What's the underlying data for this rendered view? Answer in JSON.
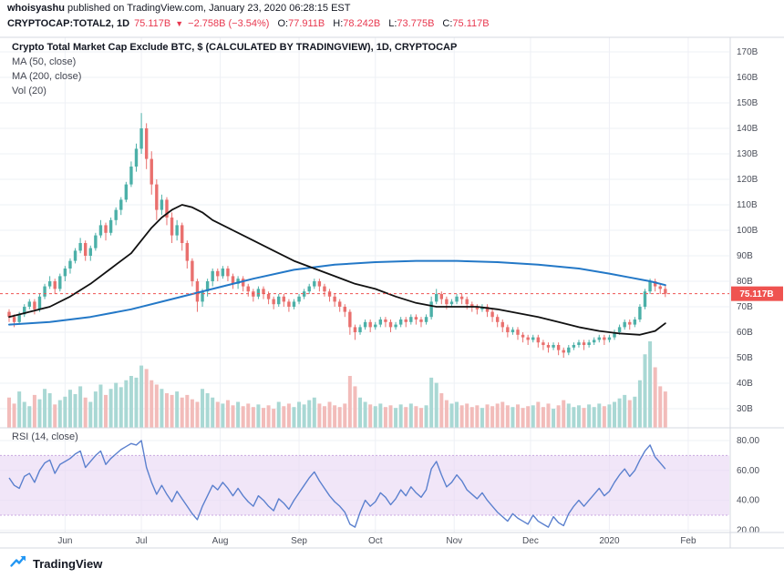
{
  "header": {
    "author": "whoisyashu",
    "published": " published on TradingView.com, January 23, 2020 06:28:15 EST",
    "symbol": "CRYPTOCAP:TOTAL2, 1D",
    "last_price": "75.117B",
    "down_arrow": "▼",
    "change": "−2.758B (−3.54%)",
    "ohlc": [
      {
        "label": "O:",
        "value": "77.911B"
      },
      {
        "label": "H:",
        "value": "78.242B"
      },
      {
        "label": "L:",
        "value": "73.775B"
      },
      {
        "label": "C:",
        "value": "75.117B"
      }
    ]
  },
  "legend": {
    "title": "Crypto Total Market Cap Exclude BTC, $ (CALCULATED BY TRADINGVIEW), 1D, CRYPTOCAP",
    "ma50": "MA (50, close)",
    "ma200": "MA (200, close)",
    "vol": "Vol (20)",
    "rsi": "RSI (14, close)"
  },
  "footer": {
    "brand": "TradingView"
  },
  "chart_data": {
    "type": "candlestick",
    "title": "Crypto Total Market Cap Exclude BTC, $ (CALCULATED BY TRADINGVIEW), 1D, CRYPTOCAP",
    "symbol": "CRYPTOCAP:TOTAL2",
    "interval": "1D",
    "ohlc_last": {
      "open": 77.911,
      "high": 78.242,
      "low": 73.775,
      "close": 75.117,
      "change": -2.758,
      "change_pct": -3.54
    },
    "y_axis": {
      "min": 30,
      "max": 170,
      "step": 10,
      "unit": "B"
    },
    "x_axis_labels": [
      {
        "label": "Jun",
        "step": 11
      },
      {
        "label": "Jul",
        "step": 26
      },
      {
        "label": "Aug",
        "step": 41.5
      },
      {
        "label": "Sep",
        "step": 57
      },
      {
        "label": "Oct",
        "step": 72
      },
      {
        "label": "Nov",
        "step": 87.5
      },
      {
        "label": "Dec",
        "step": 102.5
      },
      {
        "label": "2020",
        "step": 118
      },
      {
        "label": "Feb",
        "step": 133.5
      }
    ],
    "price_line": {
      "value": 75.117,
      "label": "75.117B"
    },
    "candles": [
      [
        68,
        69,
        64,
        66
      ],
      [
        66,
        67,
        62,
        64
      ],
      [
        64,
        68,
        63,
        67
      ],
      [
        67,
        71,
        66,
        70
      ],
      [
        70,
        73,
        69,
        72
      ],
      [
        72,
        73,
        67,
        69
      ],
      [
        69,
        75,
        68,
        74
      ],
      [
        74,
        79,
        73,
        78
      ],
      [
        78,
        82,
        77,
        80
      ],
      [
        80,
        81,
        75,
        77
      ],
      [
        77,
        83,
        76,
        82
      ],
      [
        82,
        86,
        80,
        85
      ],
      [
        85,
        89,
        83,
        88
      ],
      [
        88,
        93,
        87,
        92
      ],
      [
        92,
        97,
        91,
        95
      ],
      [
        95,
        96,
        88,
        90
      ],
      [
        90,
        94,
        88,
        93
      ],
      [
        93,
        99,
        92,
        98
      ],
      [
        98,
        104,
        97,
        102
      ],
      [
        102,
        103,
        96,
        99
      ],
      [
        99,
        105,
        98,
        104
      ],
      [
        104,
        109,
        102,
        108
      ],
      [
        108,
        113,
        106,
        112
      ],
      [
        112,
        119,
        111,
        118
      ],
      [
        118,
        127,
        117,
        125
      ],
      [
        125,
        134,
        123,
        132
      ],
      [
        132,
        146,
        130,
        140
      ],
      [
        140,
        142,
        124,
        128
      ],
      [
        128,
        131,
        114,
        118
      ],
      [
        118,
        120,
        104,
        108
      ],
      [
        108,
        114,
        106,
        112
      ],
      [
        112,
        113,
        102,
        105
      ],
      [
        105,
        107,
        95,
        98
      ],
      [
        98,
        104,
        96,
        102
      ],
      [
        102,
        103,
        92,
        95
      ],
      [
        95,
        96,
        85,
        88
      ],
      [
        88,
        89,
        78,
        80
      ],
      [
        80,
        81,
        68,
        72
      ],
      [
        72,
        77,
        70,
        76
      ],
      [
        76,
        81,
        74,
        80
      ],
      [
        80,
        85,
        78,
        84
      ],
      [
        84,
        85,
        80,
        82
      ],
      [
        82,
        86,
        81,
        85
      ],
      [
        85,
        86,
        80,
        82
      ],
      [
        82,
        83,
        77,
        79
      ],
      [
        79,
        82,
        77,
        81
      ],
      [
        81,
        82,
        76,
        78
      ],
      [
        78,
        79,
        74,
        76
      ],
      [
        76,
        77,
        72,
        74
      ],
      [
        74,
        78,
        73,
        77
      ],
      [
        77,
        78,
        73,
        75
      ],
      [
        75,
        76,
        71,
        73
      ],
      [
        73,
        74,
        69,
        71
      ],
      [
        71,
        75,
        70,
        74
      ],
      [
        74,
        75,
        70,
        72
      ],
      [
        72,
        73,
        68,
        70
      ],
      [
        70,
        73,
        69,
        72
      ],
      [
        72,
        75,
        71,
        74
      ],
      [
        74,
        77,
        73,
        76
      ],
      [
        76,
        79,
        75,
        78
      ],
      [
        78,
        81,
        77,
        80
      ],
      [
        80,
        81,
        76,
        78
      ],
      [
        78,
        79,
        74,
        76
      ],
      [
        76,
        77,
        72,
        74
      ],
      [
        74,
        75,
        70,
        72
      ],
      [
        72,
        73,
        68,
        70
      ],
      [
        70,
        71,
        66,
        68
      ],
      [
        68,
        69,
        59,
        62
      ],
      [
        62,
        63,
        57,
        60
      ],
      [
        60,
        63,
        59,
        62
      ],
      [
        62,
        65,
        61,
        64
      ],
      [
        64,
        65,
        60,
        62
      ],
      [
        62,
        64,
        61,
        63
      ],
      [
        63,
        66,
        62,
        65
      ],
      [
        65,
        66,
        62,
        64
      ],
      [
        64,
        65,
        60,
        62
      ],
      [
        62,
        64,
        61,
        63
      ],
      [
        63,
        66,
        62,
        65
      ],
      [
        65,
        66,
        62,
        64
      ],
      [
        64,
        67,
        63,
        66
      ],
      [
        66,
        67,
        63,
        65
      ],
      [
        65,
        66,
        62,
        64
      ],
      [
        64,
        67,
        63,
        66
      ],
      [
        66,
        74,
        65,
        72
      ],
      [
        72,
        77,
        71,
        75
      ],
      [
        75,
        76,
        71,
        73
      ],
      [
        73,
        74,
        69,
        71
      ],
      [
        71,
        73,
        70,
        72
      ],
      [
        72,
        75,
        71,
        74
      ],
      [
        74,
        75,
        71,
        73
      ],
      [
        73,
        74,
        69,
        71
      ],
      [
        71,
        72,
        68,
        70
      ],
      [
        70,
        71,
        67,
        69
      ],
      [
        69,
        71,
        68,
        70
      ],
      [
        70,
        71,
        66,
        68
      ],
      [
        68,
        69,
        64,
        66
      ],
      [
        66,
        67,
        62,
        64
      ],
      [
        64,
        65,
        60,
        62
      ],
      [
        62,
        63,
        58,
        60
      ],
      [
        60,
        62,
        59,
        61
      ],
      [
        61,
        62,
        57,
        59
      ],
      [
        59,
        60,
        56,
        58
      ],
      [
        58,
        59,
        55,
        57
      ],
      [
        57,
        59,
        56,
        58
      ],
      [
        58,
        59,
        54,
        56
      ],
      [
        56,
        57,
        53,
        55
      ],
      [
        55,
        56,
        52,
        54
      ],
      [
        54,
        56,
        53,
        55
      ],
      [
        55,
        56,
        51,
        53
      ],
      [
        53,
        54,
        50,
        52
      ],
      [
        52,
        55,
        51,
        54
      ],
      [
        54,
        56,
        53,
        55
      ],
      [
        55,
        57,
        54,
        56
      ],
      [
        56,
        57,
        53,
        55
      ],
      [
        55,
        57,
        54,
        56
      ],
      [
        56,
        58,
        55,
        57
      ],
      [
        57,
        59,
        56,
        58
      ],
      [
        58,
        59,
        55,
        57
      ],
      [
        57,
        59,
        56,
        58
      ],
      [
        58,
        61,
        57,
        60
      ],
      [
        60,
        63,
        59,
        62
      ],
      [
        62,
        65,
        61,
        64
      ],
      [
        64,
        65,
        61,
        63
      ],
      [
        63,
        66,
        62,
        65
      ],
      [
        65,
        71,
        64,
        70
      ],
      [
        70,
        77,
        69,
        76
      ],
      [
        76,
        81,
        75,
        80
      ],
      [
        80,
        81,
        76,
        78
      ],
      [
        78,
        79,
        75,
        77
      ],
      [
        77,
        78.2,
        73.8,
        75.1
      ]
    ],
    "volume_relative": [
      35,
      28,
      42,
      30,
      25,
      38,
      33,
      45,
      40,
      27,
      32,
      36,
      44,
      39,
      48,
      35,
      30,
      42,
      50,
      38,
      45,
      52,
      47,
      55,
      60,
      58,
      72,
      68,
      55,
      50,
      45,
      40,
      38,
      42,
      35,
      38,
      33,
      30,
      45,
      40,
      35,
      30,
      28,
      32,
      26,
      30,
      25,
      28,
      24,
      27,
      23,
      26,
      22,
      30,
      25,
      28,
      24,
      30,
      27,
      32,
      35,
      28,
      25,
      30,
      26,
      24,
      28,
      60,
      48,
      35,
      30,
      27,
      25,
      28,
      24,
      26,
      23,
      27,
      24,
      28,
      25,
      23,
      26,
      58,
      52,
      40,
      32,
      28,
      30,
      26,
      28,
      24,
      26,
      23,
      27,
      25,
      28,
      30,
      26,
      24,
      27,
      23,
      25,
      26,
      30,
      24,
      28,
      22,
      26,
      32,
      28,
      24,
      26,
      23,
      27,
      24,
      28,
      25,
      27,
      30,
      34,
      38,
      32,
      36,
      55,
      85,
      100,
      70,
      48,
      42
    ],
    "ma50": [
      [
        0,
        66
      ],
      [
        4,
        68
      ],
      [
        8,
        70
      ],
      [
        12,
        74
      ],
      [
        16,
        79
      ],
      [
        20,
        85
      ],
      [
        24,
        91
      ],
      [
        26,
        96
      ],
      [
        28,
        101
      ],
      [
        30,
        105
      ],
      [
        32,
        108
      ],
      [
        34,
        110
      ],
      [
        36,
        109
      ],
      [
        38,
        107
      ],
      [
        40,
        104
      ],
      [
        44,
        100
      ],
      [
        48,
        96
      ],
      [
        52,
        92
      ],
      [
        56,
        88
      ],
      [
        60,
        85
      ],
      [
        64,
        82
      ],
      [
        68,
        79
      ],
      [
        72,
        77
      ],
      [
        76,
        74
      ],
      [
        80,
        71.5
      ],
      [
        84,
        70
      ],
      [
        88,
        70
      ],
      [
        92,
        70
      ],
      [
        96,
        69
      ],
      [
        100,
        67.5
      ],
      [
        104,
        66
      ],
      [
        108,
        64
      ],
      [
        112,
        62
      ],
      [
        116,
        60.5
      ],
      [
        120,
        59.5
      ],
      [
        124,
        59
      ],
      [
        127,
        60.5
      ],
      [
        129,
        63.5
      ]
    ],
    "ma200": [
      [
        0,
        63
      ],
      [
        8,
        64
      ],
      [
        16,
        66
      ],
      [
        24,
        69
      ],
      [
        32,
        73
      ],
      [
        40,
        77
      ],
      [
        48,
        81
      ],
      [
        56,
        84.5
      ],
      [
        64,
        86.5
      ],
      [
        72,
        87.5
      ],
      [
        80,
        88
      ],
      [
        88,
        88
      ],
      [
        96,
        87.5
      ],
      [
        104,
        86.5
      ],
      [
        112,
        85
      ],
      [
        118,
        83
      ],
      [
        122,
        81.5
      ],
      [
        126,
        80
      ],
      [
        129,
        78.5
      ]
    ],
    "rsi": {
      "bands": [
        30,
        70
      ],
      "axis_values": [
        80,
        60,
        40,
        20
      ],
      "axis_labels": [
        "80.00",
        "60.00",
        "40.00",
        "20.00"
      ],
      "values": [
        55,
        50,
        48,
        56,
        58,
        52,
        60,
        65,
        67,
        58,
        64,
        66,
        68,
        71,
        73,
        62,
        66,
        70,
        73,
        64,
        68,
        71,
        74,
        76,
        78,
        77,
        80,
        62,
        52,
        44,
        50,
        44,
        39,
        46,
        41,
        36,
        31,
        27,
        36,
        43,
        50,
        47,
        52,
        48,
        43,
        48,
        43,
        39,
        36,
        43,
        40,
        36,
        33,
        41,
        38,
        34,
        40,
        45,
        50,
        55,
        59,
        53,
        48,
        43,
        39,
        36,
        32,
        24,
        22,
        32,
        40,
        36,
        39,
        45,
        42,
        37,
        41,
        47,
        43,
        49,
        45,
        42,
        47,
        61,
        66,
        57,
        49,
        52,
        57,
        53,
        47,
        44,
        41,
        45,
        40,
        36,
        32,
        29,
        26,
        31,
        28,
        26,
        24,
        30,
        26,
        24,
        22,
        29,
        25,
        23,
        31,
        36,
        40,
        36,
        40,
        44,
        48,
        43,
        46,
        52,
        57,
        61,
        56,
        60,
        67,
        73,
        77,
        69,
        65,
        61
      ]
    },
    "colors": {
      "up": "#4cb0a8",
      "down": "#e9706e",
      "vol_up": "#a9d8d4",
      "vol_down": "#f2bcba",
      "ma50": "#111111",
      "ma200": "#2378c7",
      "rsi_line": "#5b80ce",
      "rsi_band": "#ead9f5",
      "price": "#ef5350"
    }
  }
}
